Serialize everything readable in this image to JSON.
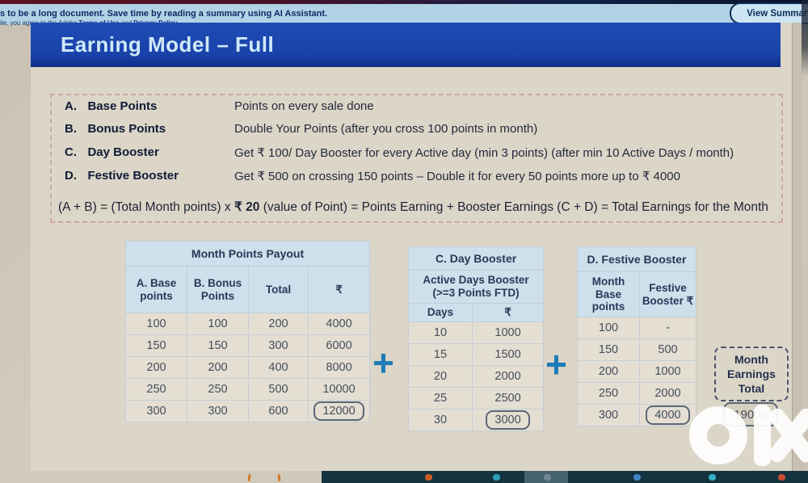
{
  "banner": {
    "line1": "s to be a long document. Save time by reading a summary using AI Assistant.",
    "line2_prefix": "ile, you agree to the Adobe ",
    "link_terms": "Terms of Use",
    "line2_and": " and ",
    "link_privacy": "Privacy Policy",
    "view_summary_label": "View Summary"
  },
  "page": {
    "title": "Earning Model – Full",
    "definitions": [
      {
        "key": "A.",
        "label": "Base Points",
        "description": "Points on every sale done"
      },
      {
        "key": "B.",
        "label": "Bonus Points",
        "description": "Double Your Points (after you cross 100 points in month)"
      },
      {
        "key": "C.",
        "label": "Day Booster",
        "description": "Get ₹ 100/ Day Booster for every Active day (min 3 points) (after min 10 Active Days / month)"
      },
      {
        "key": "D.",
        "label": "Festive Booster",
        "description": "Get ₹ 500 on crossing 150 points – Double it for every 50 points more up to ₹ 4000"
      }
    ],
    "formula_pre": "(A + B) = (Total Month points) x ",
    "formula_bold": "₹ 20",
    "formula_post": " (value of Point) = Points Earning + Booster Earnings (C + D) = Total Earnings for the Month",
    "plus_sign": "+"
  },
  "chart_data": [
    {
      "type": "table",
      "title": "Month Points Payout",
      "columns": [
        "A. Base points",
        "B. Bonus Points",
        "Total",
        "₹"
      ],
      "rows": [
        [
          "100",
          "100",
          "200",
          "4000"
        ],
        [
          "150",
          "150",
          "300",
          "6000"
        ],
        [
          "200",
          "200",
          "400",
          "8000"
        ],
        [
          "250",
          "250",
          "500",
          "10000"
        ],
        [
          "300",
          "300",
          "600",
          "12000"
        ]
      ],
      "highlighted_value": "12000"
    },
    {
      "type": "table",
      "title": "C. Day Booster",
      "subtitle": "Active Days Booster (>=3 Points FTD)",
      "columns": [
        "Days",
        "₹"
      ],
      "rows": [
        [
          "10",
          "1000"
        ],
        [
          "15",
          "1500"
        ],
        [
          "20",
          "2000"
        ],
        [
          "25",
          "2500"
        ],
        [
          "30",
          "3000"
        ]
      ],
      "highlighted_value": "3000"
    },
    {
      "type": "table",
      "title": "D. Festive Booster",
      "columns": [
        "Month Base points",
        "Festive Booster ₹"
      ],
      "rows": [
        [
          "100",
          "-"
        ],
        [
          "150",
          "500"
        ],
        [
          "200",
          "1000"
        ],
        [
          "250",
          "2000"
        ],
        [
          "300",
          "4000"
        ]
      ],
      "highlighted_value": "4000"
    }
  ],
  "summary": {
    "label": "Month Earnings Total",
    "value": "19000"
  },
  "watermark": "olx",
  "colors": {
    "title_bar_blue": "#1a43ab",
    "banner_blue": "#b2d3e6",
    "table_header_blue": "#cde0eb",
    "plus_blue": "#1e7cb8",
    "page_beige": "#dcd6c8",
    "taskbar_teal": "#13333e"
  }
}
